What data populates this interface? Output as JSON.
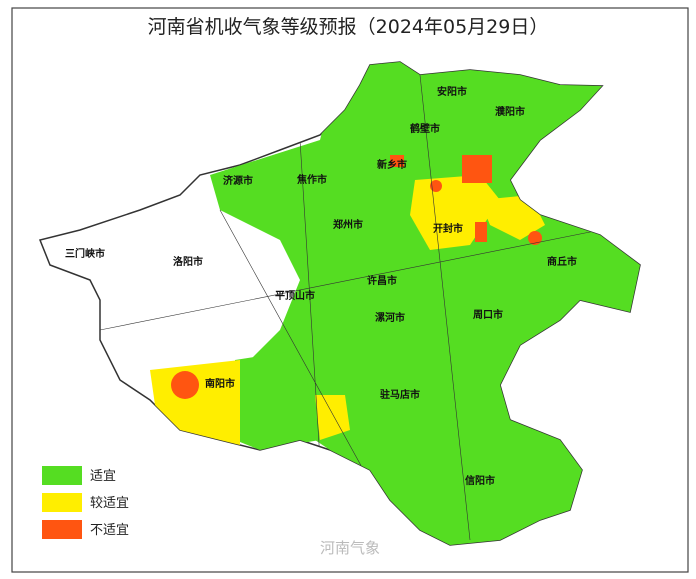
{
  "title": "河南省机收气象等级预报（2024年05月29日）",
  "cities": [
    "安阳市",
    "濮阳市",
    "鹤壁市",
    "新乡市",
    "焦作市",
    "济源市",
    "郑州市",
    "开封市",
    "三门峡市",
    "洛阳市",
    "商丘市",
    "许昌市",
    "平顶山市",
    "漯河市",
    "周口市",
    "南阳市",
    "驻马店市",
    "信阳市"
  ],
  "legend": [
    {
      "label": "适宜",
      "color": "#55dd22"
    },
    {
      "label": "较适宜",
      "color": "#ffee00"
    },
    {
      "label": "不适宜",
      "color": "#ff5511"
    }
  ],
  "watermark": "河南气象"
}
